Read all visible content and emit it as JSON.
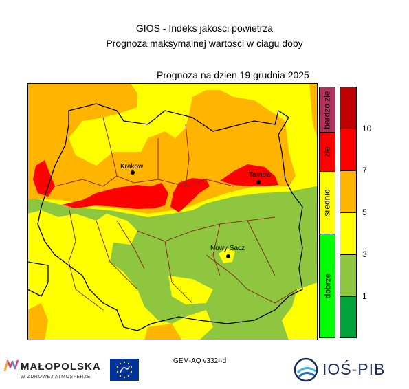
{
  "title_line1": "GIOS - Indeks jakosci powietrza",
  "title_line2": "Prognoza maksymalnej wartosci w ciagu doby",
  "forecast_date_label": "Prognoza na dzien  19 grudnia 2025",
  "cities": [
    {
      "name": "Krakow"
    },
    {
      "name": "Tarnow"
    },
    {
      "name": "Nowy Sacz"
    }
  ],
  "quality_legend": [
    {
      "label": "bardzo złe",
      "color": "#b0305e"
    },
    {
      "label": "złe",
      "color": "#ff0000"
    },
    {
      "label": "średnio",
      "color": "#ffff00"
    },
    {
      "label": "dobrze",
      "color": "#00ff00"
    }
  ],
  "index_scale": {
    "colors": [
      "#00a33b",
      "#8ec63f",
      "#ffff00",
      "#ffb400",
      "#ff0000",
      "#c00000"
    ],
    "ticks": [
      "1",
      "3",
      "5",
      "7",
      "10"
    ]
  },
  "model_label": "GEM-AQ v332--d",
  "logos": {
    "malopolska_name": "MAŁOPOLSKA",
    "malopolska_sub": "W ZDROWEJ ATMOSFERZE",
    "ios_name": "IOŚ-PIB"
  },
  "colors": {
    "good": "#8ec63f",
    "moderate": "#ffff00",
    "sufficient": "#ffb400",
    "bad": "#ff0000"
  }
}
